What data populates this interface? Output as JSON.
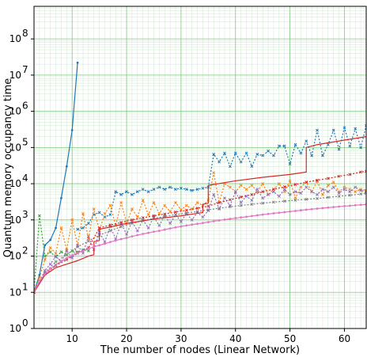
{
  "chart_data": {
    "type": "line",
    "title": "",
    "xlabel": "The number of nodes (Linear Network)",
    "ylabel": "Quantum memory occupancy time",
    "xlim": [
      3,
      64
    ],
    "ylim_log10": [
      0,
      8.9
    ],
    "yscale": "log",
    "grid": true,
    "x_ticks": [
      10,
      20,
      30,
      40,
      50,
      60
    ],
    "x_tick_labels": [
      "10",
      "20",
      "30",
      "40",
      "50",
      "60"
    ],
    "y_ticks_log10": [
      0,
      1,
      2,
      3,
      4,
      5,
      6,
      7,
      8
    ],
    "y_tick_labels": [
      {
        "base": "10",
        "exp": "0"
      },
      {
        "base": "10",
        "exp": "1"
      },
      {
        "base": "10",
        "exp": "2"
      },
      {
        "base": "10",
        "exp": "3"
      },
      {
        "base": "10",
        "exp": "4"
      },
      {
        "base": "10",
        "exp": "5"
      },
      {
        "base": "10",
        "exp": "6"
      },
      {
        "base": "10",
        "exp": "7"
      },
      {
        "base": "10",
        "exp": "8"
      }
    ],
    "series": [
      {
        "color": "#1f77b4",
        "dash": "none",
        "marker": "dot",
        "x": [
          3,
          4,
          5,
          6,
          7,
          8,
          9,
          10,
          11
        ],
        "y": [
          10,
          30,
          200,
          280,
          600,
          4000,
          30000,
          300000,
          22000000
        ]
      },
      {
        "color": "#1f77b4",
        "dash": "2,2",
        "marker": "x",
        "x": [
          11,
          12,
          13,
          14,
          15,
          16,
          17,
          18,
          19,
          20,
          21,
          22,
          23,
          24,
          25,
          26,
          27,
          28,
          29,
          30,
          31,
          32,
          33,
          34,
          35,
          36,
          37,
          38,
          39,
          40,
          41,
          42,
          43,
          44,
          45,
          46,
          47,
          48,
          49,
          50,
          51,
          52,
          53,
          54,
          55,
          56,
          57,
          58,
          59,
          60,
          61,
          62,
          63,
          64
        ],
        "y": [
          550,
          600,
          800,
          1400,
          1600,
          1200,
          1400,
          6000,
          5000,
          6000,
          5000,
          6000,
          7000,
          6000,
          7000,
          8000,
          7000,
          8000,
          7000,
          7500,
          7000,
          6500,
          7000,
          7500,
          8000,
          65000,
          40000,
          70000,
          30000,
          70000,
          40000,
          70000,
          30000,
          65000,
          60000,
          80000,
          60000,
          110000,
          110000,
          35000,
          120000,
          70000,
          150000,
          60000,
          300000,
          60000,
          120000,
          300000,
          90000,
          350000,
          110000,
          330000,
          100000,
          400000
        ]
      },
      {
        "color": "#2ca02c",
        "dash": "2,2",
        "marker": "x",
        "x": [
          3,
          4,
          5,
          6,
          7,
          8,
          9,
          10,
          11,
          12,
          13
        ],
        "y": [
          10,
          1300,
          100,
          130,
          95,
          130,
          110,
          140,
          130,
          150,
          140
        ]
      },
      {
        "color": "#ff7f0e",
        "dash": "2,2",
        "marker": "x",
        "x": [
          3,
          4,
          5,
          6,
          7,
          8,
          9,
          10,
          11,
          12,
          13,
          14,
          15,
          16,
          17,
          18,
          19,
          20,
          21,
          22,
          23,
          24,
          25,
          26,
          27,
          28,
          29,
          30,
          31,
          32,
          33,
          34,
          35,
          36,
          37,
          38,
          39,
          40,
          41,
          42,
          43,
          44,
          45,
          46,
          47,
          48,
          49,
          50,
          51,
          52,
          53,
          54,
          55,
          56,
          57,
          58,
          59,
          60,
          61,
          62,
          63,
          64
        ],
        "y": [
          10,
          25,
          80,
          170,
          120,
          600,
          150,
          1000,
          200,
          1500,
          300,
          2000,
          500,
          1500,
          2500,
          700,
          3000,
          800,
          2000,
          1200,
          3500,
          1400,
          3000,
          1500,
          2500,
          1700,
          3000,
          1900,
          2500,
          2000,
          3000,
          2500,
          3500,
          20000,
          3000,
          10000,
          8000,
          6000,
          9000,
          7000,
          9000,
          6000,
          10000,
          5000,
          7000,
          10000,
          6000,
          12000,
          4000,
          8000,
          11000,
          6000,
          12000,
          5000,
          9000,
          11000,
          6000,
          8000,
          7000,
          6000,
          7000,
          6500
        ]
      },
      {
        "color": "#9467bd",
        "dash": "2,2",
        "marker": "x",
        "x": [
          3,
          4,
          5,
          6,
          7,
          8,
          9,
          10,
          11,
          12,
          13,
          14,
          15,
          16,
          17,
          18,
          19,
          20,
          21,
          22,
          23,
          24,
          25,
          26,
          27,
          28,
          29,
          30,
          31,
          32,
          33,
          34,
          35,
          36,
          37,
          38,
          39,
          40,
          41,
          42,
          43,
          44,
          45,
          46,
          47,
          48,
          49,
          50,
          51,
          52,
          53,
          54,
          55,
          56,
          57,
          58,
          59,
          60,
          61,
          62,
          63,
          64
        ],
        "y": [
          10,
          20,
          40,
          60,
          100,
          70,
          140,
          90,
          200,
          120,
          350,
          150,
          450,
          250,
          650,
          300,
          800,
          400,
          900,
          500,
          1000,
          600,
          1200,
          700,
          1300,
          800,
          1400,
          900,
          1500,
          1000,
          1600,
          1200,
          1800,
          5000,
          2000,
          4000,
          2500,
          6000,
          3000,
          4500,
          3500,
          7000,
          4000,
          5000,
          6000,
          4500,
          7000,
          5000,
          6000,
          5500,
          8000,
          6000,
          5000,
          7000,
          6000,
          8000,
          5500,
          7000,
          6000,
          8000,
          6500,
          6000
        ]
      },
      {
        "color": "#7f7f7f",
        "dash": "2,2",
        "marker": "x",
        "x": [
          3,
          5,
          7,
          9,
          11,
          13,
          15,
          17,
          19,
          21,
          23,
          25,
          27,
          29,
          31,
          33,
          35,
          37,
          39,
          41,
          43,
          45,
          47,
          49,
          51,
          53,
          55,
          57,
          59,
          61,
          63,
          64
        ],
        "y": [
          10,
          35,
          70,
          110,
          180,
          260,
          380,
          500,
          650,
          800,
          950,
          1100,
          1250,
          1400,
          1550,
          1700,
          1900,
          2100,
          2300,
          2500,
          2700,
          2900,
          3100,
          3300,
          3500,
          3700,
          3900,
          4200,
          4500,
          4800,
          5200,
          5500
        ]
      },
      {
        "color": "#d62728",
        "dash": "none",
        "marker": "none",
        "x": [
          3,
          5,
          7,
          9,
          11,
          13,
          14,
          14,
          15,
          15,
          20,
          25,
          30,
          34,
          34,
          35,
          35,
          40,
          45,
          50,
          53,
          53,
          55,
          60,
          64
        ],
        "y": [
          10,
          30,
          48,
          60,
          75,
          100,
          110,
          250,
          270,
          550,
          800,
          1050,
          1300,
          1600,
          2700,
          2900,
          9000,
          12000,
          15000,
          18000,
          21000,
          100000,
          120000,
          160000,
          200000
        ]
      },
      {
        "color": "#d62728",
        "dash": "2,2",
        "marker": "x",
        "x": [
          3,
          5,
          7,
          9,
          11,
          13,
          15,
          17,
          19,
          21,
          23,
          25,
          27,
          29,
          31,
          33,
          35,
          37,
          39,
          41,
          43,
          45,
          47,
          49,
          51,
          53,
          55,
          57,
          59,
          61,
          63,
          64
        ],
        "y": [
          10,
          32,
          55,
          80,
          120,
          170,
          600,
          720,
          850,
          1000,
          1150,
          1300,
          1450,
          1650,
          1850,
          2100,
          2400,
          3000,
          3600,
          4300,
          5000,
          6000,
          7000,
          8200,
          9500,
          11000,
          12500,
          14000,
          16000,
          18000,
          21000,
          22000
        ]
      },
      {
        "color": "#e377c2",
        "dash": "none",
        "marker": "dot",
        "x": [
          3,
          4,
          5,
          6,
          7,
          8,
          9,
          10,
          11,
          12,
          13,
          14,
          15,
          16,
          17,
          18,
          19,
          20,
          21,
          22,
          23,
          24,
          25,
          26,
          27,
          28,
          29,
          30,
          31,
          32,
          33,
          34,
          35,
          36,
          37,
          38,
          39,
          40,
          41,
          42,
          43,
          44,
          45,
          46,
          47,
          48,
          49,
          50,
          51,
          52,
          53,
          54,
          55,
          56,
          57,
          58,
          59,
          60,
          61,
          62,
          63,
          64
        ],
        "y": [
          10,
          20,
          32,
          45,
          58,
          72,
          88,
          105,
          122,
          140,
          160,
          180,
          200,
          220,
          245,
          270,
          295,
          320,
          350,
          380,
          410,
          440,
          470,
          500,
          540,
          580,
          620,
          660,
          700,
          740,
          780,
          820,
          870,
          920,
          970,
          1020,
          1070,
          1120,
          1170,
          1220,
          1280,
          1340,
          1400,
          1460,
          1520,
          1580,
          1640,
          1700,
          1770,
          1840,
          1910,
          1980,
          2050,
          2120,
          2190,
          2260,
          2330,
          2400,
          2470,
          2540,
          2610,
          2680
        ]
      }
    ]
  }
}
